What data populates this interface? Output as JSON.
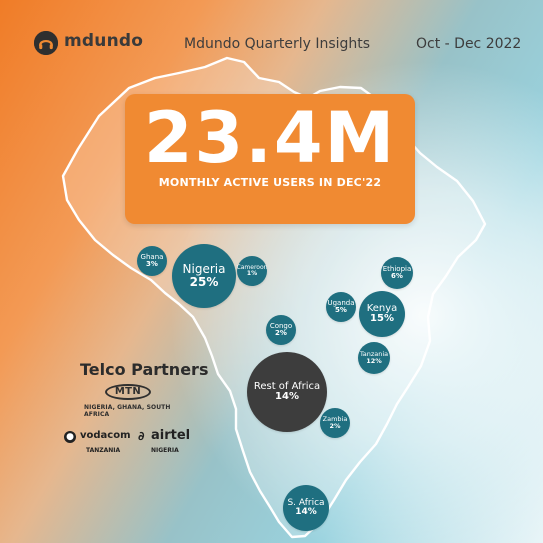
{
  "header": {
    "brand": "mdundo",
    "title": "Mdundo Quarterly Insights",
    "date_range": "Oct - Dec 2022",
    "logo_icon": "headphones-icon"
  },
  "hero": {
    "value": "23.4M",
    "label": "MONTHLY ACTIVE USERS IN DEC'22"
  },
  "bubbles": {
    "ghana": {
      "country": "Ghana",
      "share": "3%"
    },
    "nigeria": {
      "country": "Nigeria",
      "share": "25%"
    },
    "cameroon": {
      "country": "Cameroon",
      "share": "1%"
    },
    "ethiopia": {
      "country": "Ethiopia",
      "share": "6%"
    },
    "uganda": {
      "country": "Uganda",
      "share": "5%"
    },
    "kenya": {
      "country": "Kenya",
      "share": "15%"
    },
    "congo": {
      "country": "Congo",
      "share": "2%"
    },
    "tanzania": {
      "country": "Tanzania",
      "share": "12%"
    },
    "rest_africa": {
      "country": "Rest of Africa",
      "share": "14%"
    },
    "zambia": {
      "country": "Zambia",
      "share": "2%"
    },
    "south_africa": {
      "country": "S. Africa",
      "share": "14%"
    }
  },
  "telco": {
    "title": "Telco Partners",
    "mtn": {
      "logo": "MTN",
      "countries": "NIGERIA, GHANA, SOUTH AFRICA"
    },
    "vodacom": {
      "name": "vodacom",
      "country": "TANZANIA"
    },
    "airtel": {
      "name": "airtel",
      "country": "NIGERIA"
    }
  },
  "colors": {
    "orange": "#f08a32",
    "teal": "#1f6f80",
    "dark": "#3d3d3d",
    "light_blue": "#9ad3df"
  }
}
